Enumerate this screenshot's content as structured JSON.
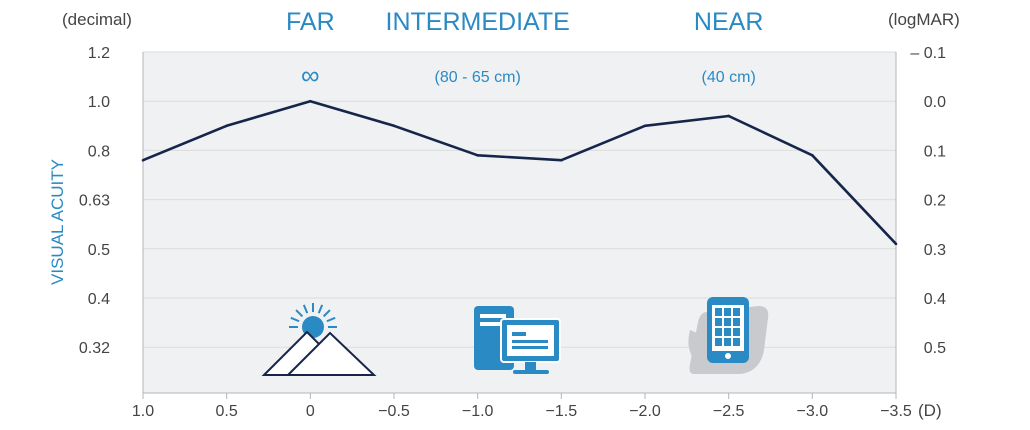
{
  "chart_data": {
    "type": "line",
    "title": "",
    "ylabel": "VISUAL ACUITY",
    "y_left_unit": "(decimal)",
    "y_right_unit": "(logMAR)",
    "x_unit": "(D)",
    "x_ticks": [
      "1.0",
      "0.5",
      "0",
      "−0.5",
      "−1.0",
      "−1.5",
      "−2.0",
      "−2.5",
      "−3.0",
      "−3.5"
    ],
    "xlim": [
      1.0,
      -3.5
    ],
    "y_ticks_decimal": [
      "1.2",
      "1.0",
      "0.8",
      "0.63",
      "0.5",
      "0.4",
      "0.32"
    ],
    "y_ticks_logmar": [
      "– 0.1",
      "0.0",
      "0.1",
      "0.2",
      "0.3",
      "0.4",
      "0.5"
    ],
    "ylim_logmar": [
      0.6,
      -0.1
    ],
    "y_scale": "logMAR (decimal = 10^-logMAR)",
    "grid": "horizontal",
    "zones": [
      {
        "label": "FAR",
        "sublabel": "∞",
        "x": 0,
        "icon": "mountain-sun-icon"
      },
      {
        "label": "INTERMEDIATE",
        "sublabel": "(80 - 65 cm)",
        "x": -1.0,
        "icon": "computer-icon"
      },
      {
        "label": "NEAR",
        "sublabel": "(40 cm)",
        "x": -2.5,
        "icon": "smartphone-icon"
      }
    ],
    "series": [
      {
        "x": [
          1.0,
          0.5,
          0,
          -0.5,
          -1.0,
          -1.5,
          -2.0,
          -2.5,
          -3.0,
          -3.5
        ],
        "y_logmar": [
          0.12,
          0.05,
          0.0,
          0.05,
          0.11,
          0.12,
          0.05,
          0.03,
          0.11,
          0.29
        ]
      }
    ],
    "colors": {
      "line": "#16264a",
      "accent": "#2a8ac4",
      "text": "#444444",
      "grid": "#dcdcdc",
      "plot_bg": "#f0f1f3",
      "axis": "#b5b5b5"
    }
  }
}
